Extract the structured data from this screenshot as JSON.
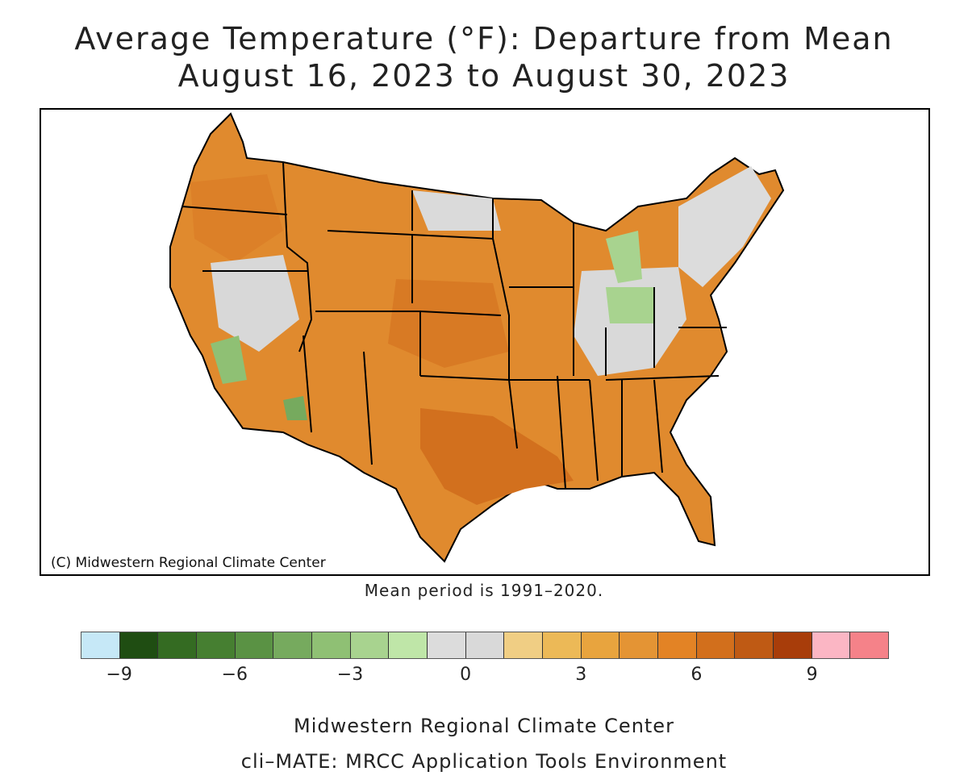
{
  "title": {
    "line1": "Average Temperature (°F): Departure from Mean",
    "line2": "August 16, 2023 to August 30, 2023"
  },
  "map": {
    "credit": "(C) Midwestern Regional Climate Center",
    "dominant_color": "#e08a2e",
    "state_border_color": "#000000"
  },
  "mean_note": "Mean period is 1991–2020.",
  "legend": {
    "colors": [
      "#c6e8f7",
      "#1f4d12",
      "#346b22",
      "#467f31",
      "#5a9244",
      "#76aa5e",
      "#8fc074",
      "#a8d38f",
      "#bfe6a8",
      "#dcdcdc",
      "#d9d9d9",
      "#f0ce84",
      "#ecb957",
      "#e8a43e",
      "#e49434",
      "#e38325",
      "#d26f1c",
      "#bf5a14",
      "#a83d0a",
      "#fbb6c4",
      "#f58289"
    ],
    "ticks": [
      "−9",
      "−6",
      "−3",
      "0",
      "3",
      "6",
      "9"
    ]
  },
  "footer": {
    "line1": "Midwestern Regional Climate Center",
    "line2": "cli–MATE: MRCC Application Tools Environment"
  }
}
